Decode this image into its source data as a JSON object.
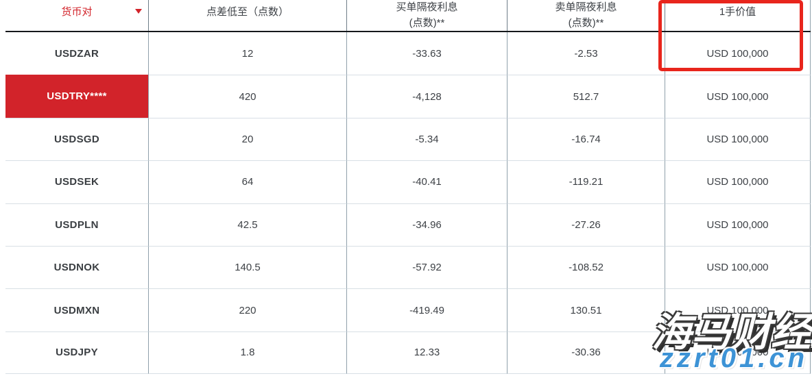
{
  "table": {
    "columns": [
      {
        "line1": "货币对"
      },
      {
        "line1": "点差低至（点数）"
      },
      {
        "line1": "买单隔夜利息",
        "line2": "(点数)**"
      },
      {
        "line1": "卖单隔夜利息",
        "line2": "(点数)**"
      },
      {
        "line1": "1手价值"
      }
    ],
    "rows": [
      {
        "pair": "USDZAR",
        "spread": "12",
        "buy_overnight": "-33.63",
        "sell_overnight": "-2.53",
        "lot_value": "USD 100,000"
      },
      {
        "pair": "USDTRY****",
        "spread": "420",
        "buy_overnight": "-4,128",
        "sell_overnight": "512.7",
        "lot_value": "USD 100,000"
      },
      {
        "pair": "USDSGD",
        "spread": "20",
        "buy_overnight": "-5.34",
        "sell_overnight": "-16.74",
        "lot_value": "USD 100,000"
      },
      {
        "pair": "USDSEK",
        "spread": "64",
        "buy_overnight": "-40.41",
        "sell_overnight": "-119.21",
        "lot_value": "USD 100,000"
      },
      {
        "pair": "USDPLN",
        "spread": "42.5",
        "buy_overnight": "-34.96",
        "sell_overnight": "-27.26",
        "lot_value": "USD 100,000"
      },
      {
        "pair": "USDNOK",
        "spread": "140.5",
        "buy_overnight": "-57.92",
        "sell_overnight": "-108.52",
        "lot_value": "USD 100,000"
      },
      {
        "pair": "USDMXN",
        "spread": "220",
        "buy_overnight": "-419.49",
        "sell_overnight": "130.51",
        "lot_value": "USD 100,000"
      },
      {
        "pair": "USDJPY",
        "spread": "1.8",
        "buy_overnight": "12.33",
        "sell_overnight": "-30.36",
        "lot_value": "USD 100,000"
      }
    ],
    "highlighted_row": "USDTRY****",
    "highlighted_column": "1手价值"
  },
  "watermark": {
    "brand": "海马财经",
    "site": "zzrt01.cn"
  },
  "colors": {
    "accent_red": "#d2232a",
    "highlight_box_red": "#e8251c",
    "watermark_blue": "#3d93d6",
    "header_rule_black": "#15181a",
    "grid_vertical": "#8fa0ab",
    "grid_horizontal": "#d8dfe5"
  }
}
